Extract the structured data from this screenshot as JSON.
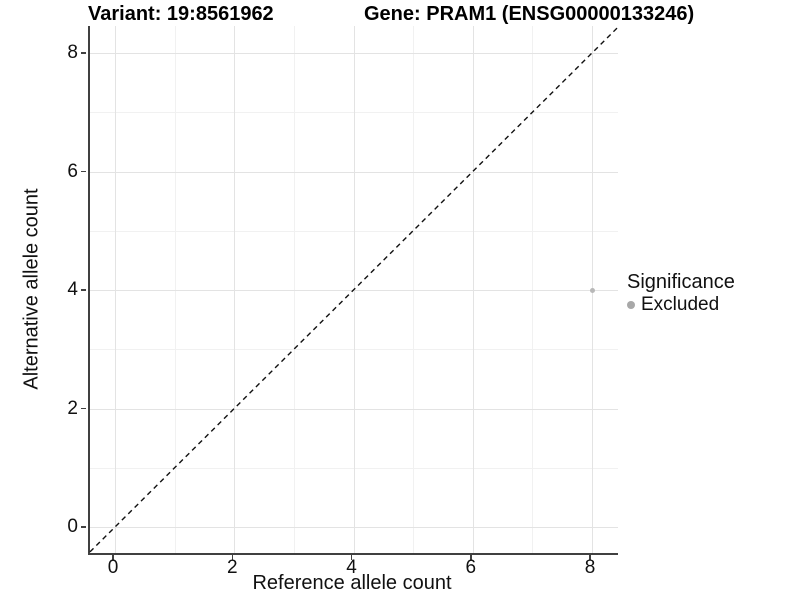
{
  "titles": {
    "variant": "Variant: 19:8561962",
    "gene": "Gene: PRAM1 (ENSG00000133246)"
  },
  "axes": {
    "x": {
      "label": "Reference allele count"
    },
    "y": {
      "label": "Alternative allele count"
    }
  },
  "legend": {
    "title": "Significance",
    "items": [
      {
        "label": "Excluded",
        "color": "#a8a8a8"
      }
    ]
  },
  "colors": {
    "background": "#ffffff",
    "grid_major": "#e3e3e3",
    "grid_minor": "#f1f1f1",
    "axis_line": "#404040",
    "point": "#b8b8b8",
    "reference_line": "#111111",
    "text": "#111111"
  },
  "chart_data": {
    "type": "scatter",
    "title": "Variant: 19:8561962 — Gene: PRAM1 (ENSG00000133246)",
    "xlabel": "Reference allele count",
    "ylabel": "Alternative allele count",
    "xlim": [
      -0.42,
      8.44
    ],
    "ylim": [
      -0.43,
      8.45
    ],
    "x_ticks": [
      0,
      2,
      4,
      6,
      8
    ],
    "y_ticks": [
      0,
      2,
      4,
      6,
      8
    ],
    "x_minor_ticks": [
      1,
      3,
      5,
      7
    ],
    "y_minor_ticks": [
      1,
      3,
      5,
      7
    ],
    "grid": "major+minor",
    "legend_position": "right",
    "series": [
      {
        "name": "Excluded",
        "color": "#b8b8b8",
        "points": [
          {
            "x": 8,
            "y": 4
          }
        ]
      }
    ],
    "reference_line": {
      "kind": "abline",
      "slope": 1,
      "intercept": 0,
      "style": "dashed",
      "color": "#111111"
    }
  }
}
